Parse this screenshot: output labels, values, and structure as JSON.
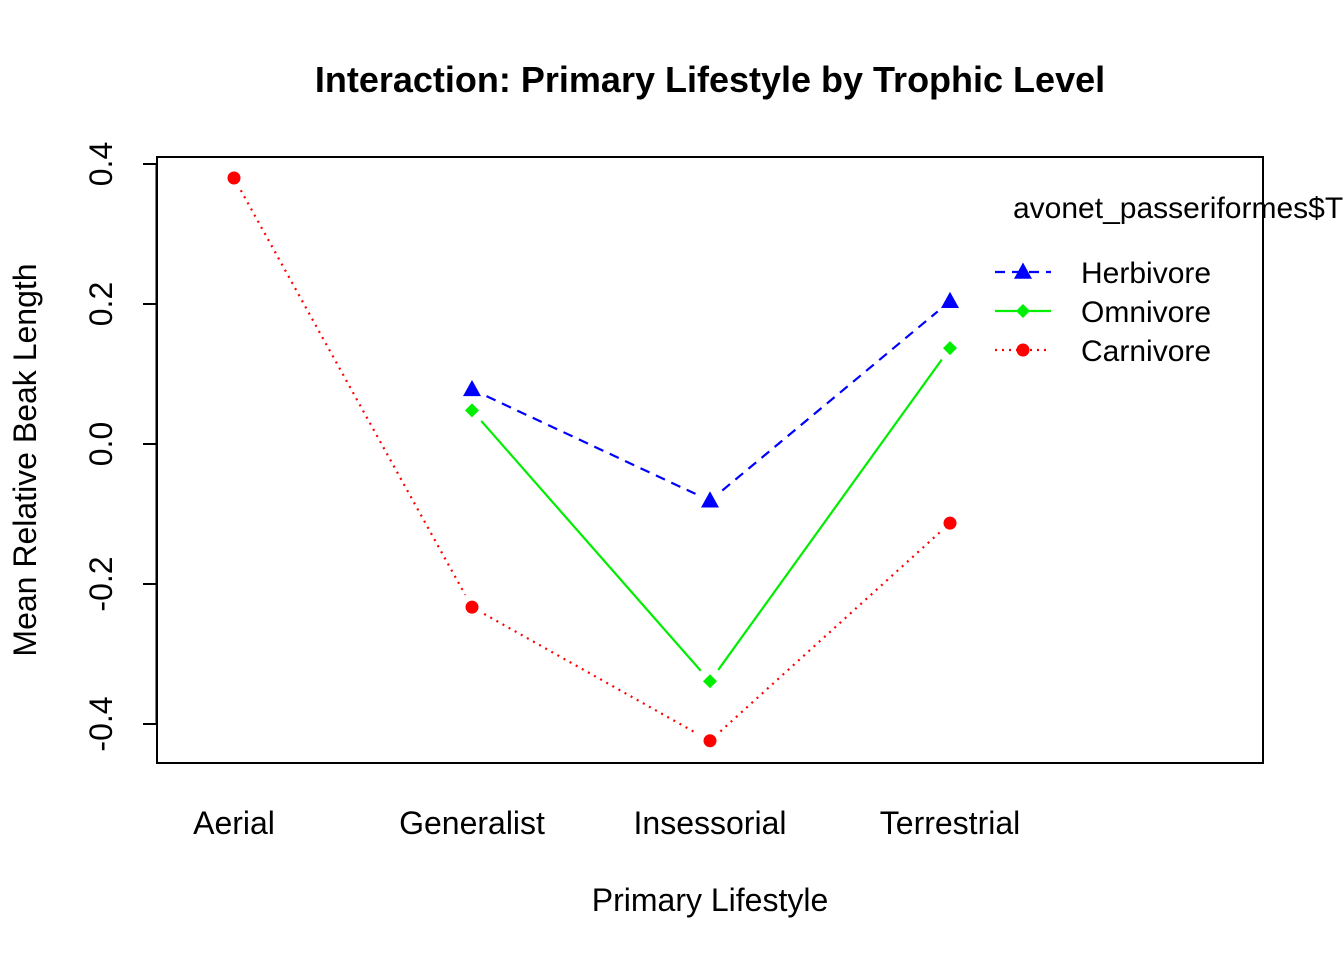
{
  "chart_data": {
    "type": "line",
    "title": "Interaction: Primary Lifestyle by Trophic Level",
    "xlabel": "Primary Lifestyle",
    "ylabel": "Mean Relative Beak Length",
    "categories": [
      "Aerial",
      "Generalist",
      "Insessorial",
      "Terrestrial"
    ],
    "ylim": [
      -0.46,
      0.41
    ],
    "yticks": [
      {
        "value": -0.4,
        "label": "-0.4"
      },
      {
        "value": -0.2,
        "label": "-0.2"
      },
      {
        "value": 0.0,
        "label": "0.0"
      },
      {
        "value": 0.2,
        "label": "0.2"
      },
      {
        "value": 0.4,
        "label": "0.4"
      }
    ],
    "legend": {
      "title": "avonet_passeriformes$T",
      "placement": "top-right"
    },
    "series": [
      {
        "name": "Herbivore",
        "values": [
          null,
          0.078,
          -0.081,
          0.204
        ],
        "color": "#0000ff",
        "line_style": "dashed",
        "marker": "triangle"
      },
      {
        "name": "Omnivore",
        "values": [
          null,
          0.048,
          -0.339,
          0.137
        ],
        "color": "#00ee00",
        "line_style": "solid",
        "marker": "diamond"
      },
      {
        "name": "Carnivore",
        "values": [
          0.38,
          -0.233,
          -0.424,
          -0.113
        ],
        "color": "#ff0000",
        "line_style": "dotted",
        "marker": "circle"
      }
    ]
  }
}
